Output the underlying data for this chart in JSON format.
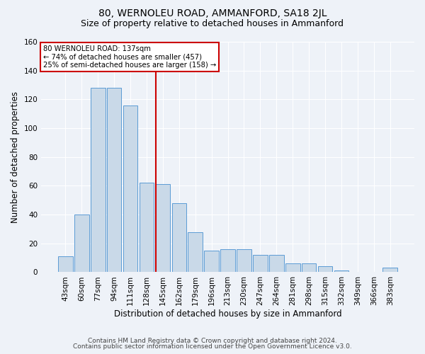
{
  "title": "80, WERNOLEU ROAD, AMMANFORD, SA18 2JL",
  "subtitle": "Size of property relative to detached houses in Ammanford",
  "xlabel": "Distribution of detached houses by size in Ammanford",
  "ylabel": "Number of detached properties",
  "categories": [
    "43sqm",
    "60sqm",
    "77sqm",
    "94sqm",
    "111sqm",
    "128sqm",
    "145sqm",
    "162sqm",
    "179sqm",
    "196sqm",
    "213sqm",
    "230sqm",
    "247sqm",
    "264sqm",
    "281sqm",
    "298sqm",
    "315sqm",
    "332sqm",
    "349sqm",
    "366sqm",
    "383sqm"
  ],
  "values": [
    11,
    40,
    128,
    128,
    116,
    62,
    61,
    48,
    28,
    15,
    16,
    16,
    12,
    12,
    6,
    6,
    4,
    1,
    0,
    0,
    3
  ],
  "bar_color": "#c9d9e8",
  "bar_edge_color": "#5b9bd5",
  "reference_line_x": 6.0,
  "reference_line_label": "80 WERNOLEU ROAD: 137sqm",
  "annotation_line1": "← 74% of detached houses are smaller (457)",
  "annotation_line2": "25% of semi-detached houses are larger (158) →",
  "annotation_box_color": "#ffffff",
  "annotation_box_edge": "#cc0000",
  "vline_color": "#cc0000",
  "ylim": [
    0,
    160
  ],
  "yticks": [
    0,
    20,
    40,
    60,
    80,
    100,
    120,
    140,
    160
  ],
  "footnote1": "Contains HM Land Registry data © Crown copyright and database right 2024.",
  "footnote2": "Contains public sector information licensed under the Open Government Licence v3.0.",
  "bg_color": "#eef2f8",
  "plot_bg_color": "#eef2f8",
  "title_fontsize": 10,
  "subtitle_fontsize": 9,
  "tick_fontsize": 7.5,
  "label_fontsize": 8.5,
  "footnote_fontsize": 6.5
}
